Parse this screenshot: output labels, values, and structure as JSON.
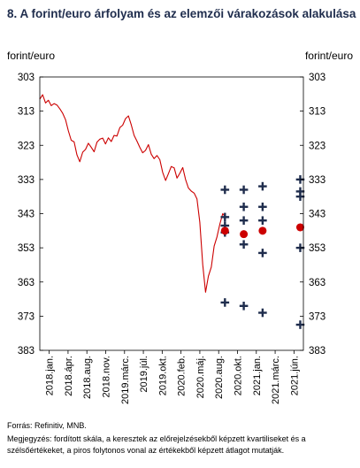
{
  "title": "8. A forint/euro árfolyam és az elemzői várakozások alakulása",
  "chart_data": {
    "type": "line",
    "ylabel_left": "forint/euro",
    "ylabel_right": "forint/euro",
    "y_inverted": true,
    "ylim": [
      303,
      383
    ],
    "yticks": [
      "303",
      "313",
      "323",
      "333",
      "343",
      "353",
      "363",
      "373",
      "383"
    ],
    "xlim": [
      "2018-01",
      "2021-07"
    ],
    "xticks": [
      "2018.jan.",
      "2018.ápr.",
      "2018.aug.",
      "2018.nov.",
      "2019.márc.",
      "2019.júl.",
      "2019.okt.",
      "2020.feb.",
      "2020.máj.",
      "2020.aug.",
      "2020.okt.",
      "2021.jan.",
      "2021.márc.",
      "2021.jún."
    ],
    "series": [
      {
        "type": "line",
        "color": "#cc0000",
        "points": [
          [
            "2018-01",
            309.5
          ],
          [
            "2018-01",
            308.2
          ],
          [
            "2018-02",
            310.6
          ],
          [
            "2018-02",
            309.8
          ],
          [
            "2018-03",
            311.4
          ],
          [
            "2018-03",
            310.8
          ],
          [
            "2018-04",
            311.2
          ],
          [
            "2018-04",
            312.3
          ],
          [
            "2018-04",
            313.6
          ],
          [
            "2018-05",
            315.5
          ],
          [
            "2018-05",
            318.8
          ],
          [
            "2018-05",
            321.5
          ],
          [
            "2018-06",
            322.0
          ],
          [
            "2018-06",
            325.8
          ],
          [
            "2018-06",
            327.8
          ],
          [
            "2018-07",
            325.0
          ],
          [
            "2018-07",
            324.2
          ],
          [
            "2018-08",
            322.4
          ],
          [
            "2018-08",
            323.6
          ],
          [
            "2018-09",
            324.9
          ],
          [
            "2018-09",
            322.1
          ],
          [
            "2018-10",
            321.2
          ],
          [
            "2018-10",
            320.9
          ],
          [
            "2018-11",
            322.6
          ],
          [
            "2018-11",
            320.8
          ],
          [
            "2018-12",
            321.9
          ],
          [
            "2018-12",
            320.1
          ],
          [
            "2019-01",
            320.3
          ],
          [
            "2019-01",
            317.8
          ],
          [
            "2019-02",
            317.1
          ],
          [
            "2019-02",
            315.2
          ],
          [
            "2019-03",
            314.4
          ],
          [
            "2019-03",
            317.0
          ],
          [
            "2019-04",
            320.1
          ],
          [
            "2019-04",
            321.8
          ],
          [
            "2019-05",
            323.6
          ],
          [
            "2019-05",
            325.2
          ],
          [
            "2019-06",
            324.5
          ],
          [
            "2019-06",
            322.8
          ],
          [
            "2019-07",
            325.6
          ],
          [
            "2019-07",
            326.9
          ],
          [
            "2019-08",
            326.0
          ],
          [
            "2019-08",
            327.2
          ],
          [
            "2019-09",
            330.9
          ],
          [
            "2019-09",
            333.3
          ],
          [
            "2019-10",
            331.3
          ],
          [
            "2019-10",
            329.2
          ],
          [
            "2019-11",
            329.6
          ],
          [
            "2019-11",
            332.6
          ],
          [
            "2019-12",
            331.2
          ],
          [
            "2019-12",
            329.5
          ],
          [
            "2020-01",
            333.0
          ],
          [
            "2020-01",
            335.5
          ],
          [
            "2020-02",
            336.4
          ],
          [
            "2020-02",
            337.0
          ],
          [
            "2020-03",
            338.7
          ],
          [
            "2020-03",
            345.5
          ],
          [
            "2020-03",
            357.9
          ],
          [
            "2020-03",
            366.0
          ],
          [
            "2020-04",
            361.3
          ],
          [
            "2020-04",
            358.6
          ],
          [
            "2020-04",
            352.5
          ],
          [
            "2020-05",
            349.8
          ],
          [
            "2020-05",
            346.0
          ],
          [
            "2020-05",
            343.0
          ],
          [
            "2020-06",
            344.0
          ]
        ]
      }
    ],
    "forecasts": [
      {
        "x": "2020-06",
        "markers": [
          336.0,
          344.0,
          346.5,
          348.5,
          369.0
        ],
        "mean": 348.0
      },
      {
        "x": "2020-09",
        "markers": [
          336.0,
          341.0,
          345.0,
          352.0,
          370.0
        ],
        "mean": 349.0
      },
      {
        "x": "2020-12",
        "markers": [
          335.0,
          341.0,
          345.0,
          354.5,
          372.0
        ],
        "mean": 348.0
      },
      {
        "x": "2021-06",
        "markers": [
          333.0,
          336.5,
          338.0,
          353.0,
          375.5
        ],
        "mean": 347.0
      }
    ],
    "marker_color": "#1f2d4d",
    "mean_color": "#cc0000"
  },
  "source": "Forrás: Refinitiv, MNB.",
  "note": "Megjegyzés: fordított skála, a keresztek az előrejelzésekből képzett kvartiliseket és a szélsőértékeket, a piros folytonos vonal az értékekből képzett átlagot mutatják."
}
